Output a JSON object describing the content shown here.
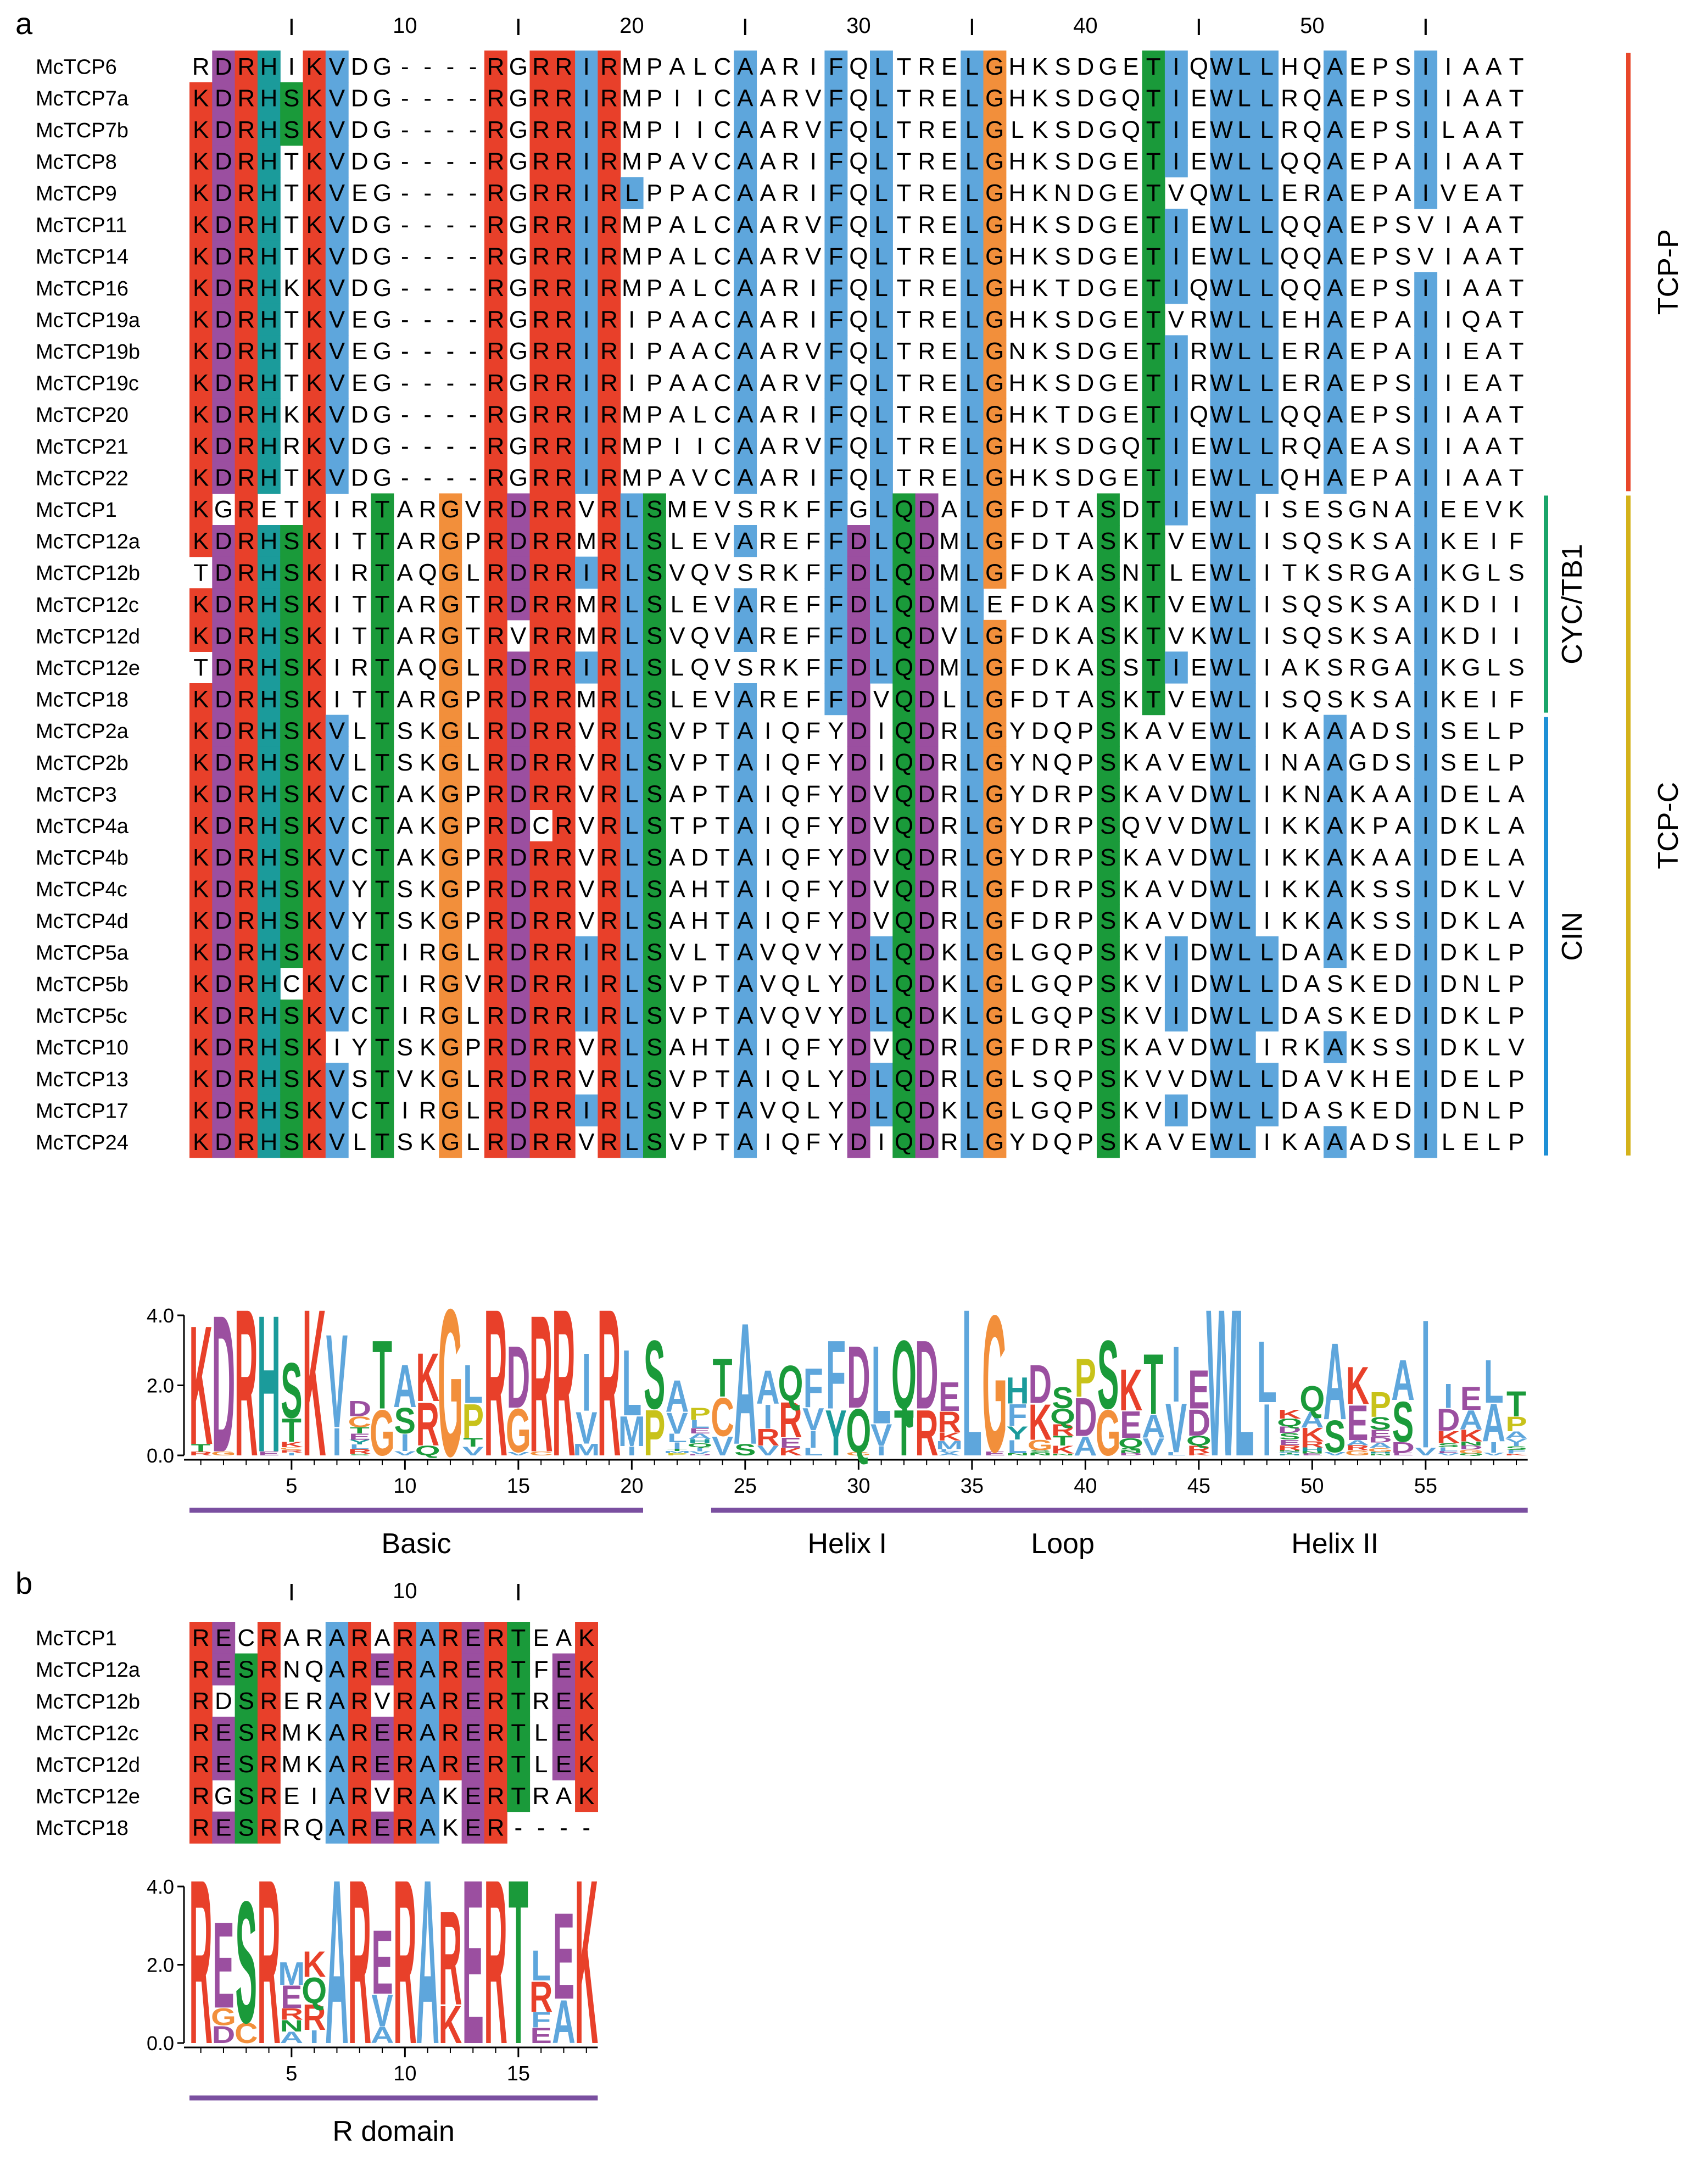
{
  "panel_a": {
    "label": "a",
    "ruler_ticks": [
      {
        "pos": 10,
        "label": "10"
      },
      {
        "pos": 20,
        "label": "20"
      },
      {
        "pos": 30,
        "label": "30"
      },
      {
        "pos": 40,
        "label": "40"
      },
      {
        "pos": 50,
        "label": "50"
      }
    ],
    "ruler_minor": [
      5,
      15,
      25,
      35,
      45,
      55
    ],
    "sequences": [
      {
        "name": "McTCP6",
        "seq": "RDRHIKVDG----RGRRIRMPALCAARIFQLTRELGHKSDGETIQWLLHQAEPSIIAAT"
      },
      {
        "name": "McTCP7a",
        "seq": "KDRHSKVDG----RGRRIRMPIICAARVFQLTRELGHKSDGQTIEWLLRQAEPSIIAAT"
      },
      {
        "name": "McTCP7b",
        "seq": "KDRHSKVDG----RGRRIRMPIICAARVFQLTRELGLKSDGQTIEWLLRQAEPSILAAT"
      },
      {
        "name": "McTCP8",
        "seq": "KDRHTKVDG----RGRRIRMPAVCAARIFQLTRELGHKSDGETIEWLLQQAEPAIIAAT"
      },
      {
        "name": "McTCP9",
        "seq": "KDRHTKVEG----RGRRIRLPPACAARIFQLTRELGHKNDGETVQWLLERAEPAIVEAT"
      },
      {
        "name": "McTCP11",
        "seq": "KDRHTKVDG----RGRRIRMPALCAARVFQLTRELGHKSDGETIEWLLQQAEPSVIAAT"
      },
      {
        "name": "McTCP14",
        "seq": "KDRHTKVDG----RGRRIRMPALCAARVFQLTRELGHKSDGETIEWLLQQAEPSVIAAT"
      },
      {
        "name": "McTCP16",
        "seq": "KDRHKKVDG----RGRRIRMPALCAARIFQLTRELGHKTDGETIQWLLQQAEPSIIAAT"
      },
      {
        "name": "McTCP19a",
        "seq": "KDRHTKVEG----RGRRIRIPAACAARIFQLTRELGHKSDGETVRWLLEHAEPAIIQAT"
      },
      {
        "name": "McTCP19b",
        "seq": "KDRHTKVEG----RGRRIRIPAACAARVFQLTRELGNKSDGETIRWLLERAEPAIIEAT"
      },
      {
        "name": "McTCP19c",
        "seq": "KDRHTKVEG----RGRRIRIPAACAARVFQLTRELGHKSDGETIRWLLERAEPSIIEAT"
      },
      {
        "name": "McTCP20",
        "seq": "KDRHKKVDG----RGRRIRMPALCAARIFQLTRELGHKTDGETIQWLLQQAEPSIIAAT"
      },
      {
        "name": "McTCP21",
        "seq": "KDRHRKVDG----RGRRIRMPIICAARVFQLTRELGHKSDGQTIEWLLRQAEASIIAAT"
      },
      {
        "name": "McTCP22",
        "seq": "KDRHTKVDG----RGRRIRMPAVCAARIFQLTRELGHKSDGETIEWLLQHAEPAIIAAT"
      },
      {
        "name": "McTCP1",
        "seq": "KGRETKIRTARGVRDRRVRLSMEVSRKFFGLQDALGFDTASDTIEWLISESGNAIEEVK"
      },
      {
        "name": "McTCP12a",
        "seq": "KDRHSKITTARGPRDRRMRLSLEVAREFFDLQDMLGFDTASKTVEWLISQSKSAIKEIF"
      },
      {
        "name": "McTCP12b",
        "seq": "TDRHSKIRTAQGLRDRRIRLSVQVSRKFFDLQDMLGFDKASNTLEWLITKSRGAIKGLS"
      },
      {
        "name": "McTCP12c",
        "seq": "KDRHSKITTARGTRDRRMRLSLEVAREFFDLQDMLEFDKASKTVEWLISQSKSAIKDII"
      },
      {
        "name": "McTCP12d",
        "seq": "KDRHSKITTARGTRVRRMRLSVQVAREFFDLQDVLGFDKASKTVKWLISQSKSAIKDII"
      },
      {
        "name": "McTCP12e",
        "seq": "TDRHSKIRTAQGLRDRRIRLSLQVSRKFFDLQDMLGFDKASSTIEWLIAKSRGAIKGLS"
      },
      {
        "name": "McTCP18",
        "seq": "KDRHSKITTARGPRDRRMRLSLEVAREFFDVQDLLGFDTASKTVEWLISQSKSAIKEIF"
      },
      {
        "name": "McTCP2a",
        "seq": "KDRHSKVLTSKGLRDRRVRLSVPTAIQFYDIQDRLGYDQPSKAVEWLIKAAADSISELP"
      },
      {
        "name": "McTCP2b",
        "seq": "KDRHSKVLTSKGLRDRRVRLSVPTAIQFYDIQDRLGYNQPSKAVEWLINAAGDSISELP"
      },
      {
        "name": "McTCP3",
        "seq": "KDRHSKVCTAKGPRDRRVRLSAPTAIQFYDVQDRLGYDRPSKAVDWLIKNAKAAIDELA"
      },
      {
        "name": "McTCP4a",
        "seq": "KDRHSKVCTAKGPRDCRVRLSTPTAIQFYDVQDRLGYDRPSQVVDWLIKKAKPAIDKLA"
      },
      {
        "name": "McTCP4b",
        "seq": "KDRHSKVCTAKGPRDRRVRLSADTAIQFYDVQDRLGYDRPSKAVDWLIKKAKAAIDELA"
      },
      {
        "name": "McTCP4c",
        "seq": "KDRHSKVYTSKGPRDRRVRLSAHTAIQFYDVQDRLGFDRPSKAVDWLIKKAKSSIDKLV"
      },
      {
        "name": "McTCP4d",
        "seq": "KDRHSKVYTSKGPRDRRVRLSAHTAIQFYDVQDRLGFDRPSKAVDWLIKKAKSSIDKLA"
      },
      {
        "name": "McTCP5a",
        "seq": "KDRHSKVCTIRGLRDRRIRLSVLTAVQVYDLQDKLGLGQPSKVIDWLLDAAKEDIDKLP"
      },
      {
        "name": "McTCP5b",
        "seq": "KDRHCKVCTIRGVRDRRIRLSVPTAVQLYDLQDKLGLGQPSKVIDWLLDASKEDIDNLP"
      },
      {
        "name": "McTCP5c",
        "seq": "KDRHSKVCTIRGLRDRRIRLSVPTAVQVYDLQDKLGLGQPSKVIDWLLDASKEDIDKLP"
      },
      {
        "name": "McTCP10",
        "seq": "KDRHSKIYTSKGPRDRRVRLSAHTAIQFYDVQDRLGFDRPSKAVDWLIRKAKSSIDKLV"
      },
      {
        "name": "McTCP13",
        "seq": "KDRHSKVSTVKGLRDRRVRLSVPTAIQLYDLQDRLGLSQPSKVVDWLLDAVKHEIDELP"
      },
      {
        "name": "McTCP17",
        "seq": "KDRHSKVCTIRGLRDRRIRLSVPTAVQLYDLQDKLGLGQPSKVIDWLLDASKEDIDNLP"
      },
      {
        "name": "McTCP24",
        "seq": "KDRHSKVLTSKGLRDRRVRLSVPTAIQFYDIQDRLGYDQPSKAVEWLIKAAADSILELP"
      }
    ],
    "groups": [
      {
        "label": "TCP-P",
        "from": 0,
        "to": 13,
        "color": "#e8472a",
        "level": 2
      },
      {
        "label": "CYC/TB1",
        "from": 14,
        "to": 20,
        "color": "#1aa56a",
        "level": 1
      },
      {
        "label": "CIN",
        "from": 21,
        "to": 34,
        "color": "#1e90d6",
        "level": 1
      },
      {
        "label": "TCP-C",
        "from": 14,
        "to": 34,
        "color": "#d4b21a",
        "level": 2
      }
    ],
    "logo_axis": {
      "ymax": 4.0,
      "ticks": [
        "4.0",
        "2.0",
        "0.0"
      ]
    },
    "logo_xticks": [
      "5",
      "10",
      "15",
      "20",
      "25",
      "30",
      "35",
      "40",
      "45",
      "50",
      "55"
    ],
    "domains": [
      {
        "label": "Basic",
        "from": 1,
        "to": 20
      },
      {
        "label": "Helix I",
        "from": 24,
        "to": 35
      },
      {
        "label": "Loop",
        "from": 36,
        "to": 42
      },
      {
        "label": "Helix II",
        "from": 43,
        "to": 59
      }
    ]
  },
  "panel_b": {
    "label": "b",
    "ruler_ticks": [
      {
        "pos": 10,
        "label": "10"
      }
    ],
    "ruler_minor": [
      5,
      15
    ],
    "sequences": [
      {
        "name": "McTCP1",
        "seq": "RECRARARARARERTEAK"
      },
      {
        "name": "McTCP12a",
        "seq": "RESRNQARERARERTFEK"
      },
      {
        "name": "McTCP12b",
        "seq": "RDSRERARVRARERTREK"
      },
      {
        "name": "McTCP12c",
        "seq": "RESRMKARERARERTLEK"
      },
      {
        "name": "McTCP12d",
        "seq": "RESRMKARERARERTLEK"
      },
      {
        "name": "McTCP12e",
        "seq": "RGSREIARVRAKERTRAK"
      },
      {
        "name": "McTCP18",
        "seq": "RESRRQARERAKER----"
      }
    ],
    "logo_axis": {
      "ymax": 4.0,
      "ticks": [
        "4.0",
        "2.0",
        "0.0"
      ]
    },
    "logo_xticks": [
      "5",
      "10",
      "15"
    ],
    "domains": [
      {
        "label": "R domain",
        "from": 1,
        "to": 18
      }
    ]
  },
  "colors": {
    "R": "#e8402a",
    "K": "#e8402a",
    "H": "#1b9b9b",
    "D": "#9b4fa0",
    "E": "#9b4fa0",
    "G": "#f28f3b",
    "P": "#c8c21a",
    "S": "#1a9a3a",
    "T": "#1a9a3a",
    "N": "#1a9a3a",
    "Q": "#1a9a3a",
    "C": "#f28f3b",
    "Y": "#1b9b9b",
    "A": "#5ea6dc",
    "V": "#5ea6dc",
    "L": "#5ea6dc",
    "I": "#5ea6dc",
    "M": "#5ea6dc",
    "F": "#5ea6dc",
    "W": "#5ea6dc",
    "domain_bar": "#7a4fa0",
    "text": "#000000"
  }
}
